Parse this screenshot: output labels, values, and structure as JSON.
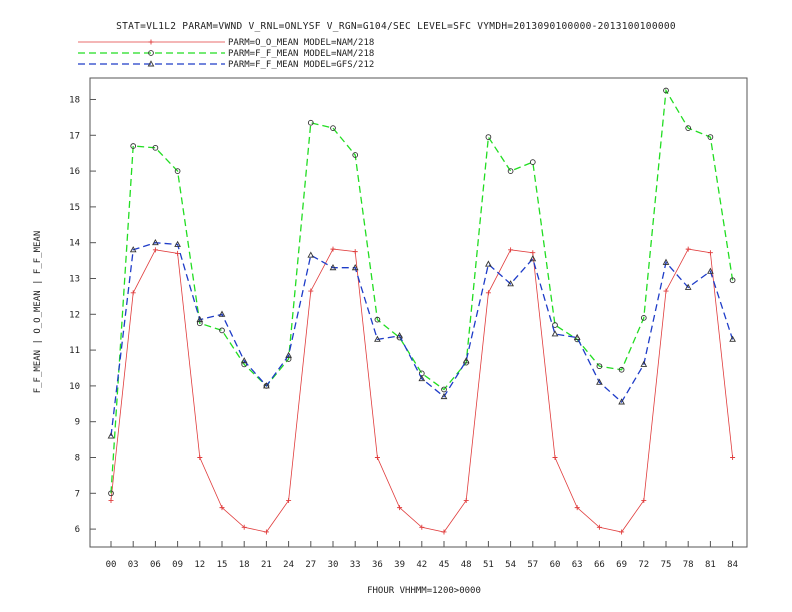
{
  "chart_data": {
    "type": "line",
    "title": "STAT=VL1L2 PARAM=VWND V_RNL=ONLYSF V_RGN=G104/SEC LEVEL=SFC VYMDH=2013090100000-2013100100000",
    "xlabel": "FHOUR VHHMM=1200>0000",
    "ylabel": "F_F_MEAN | O_O_MEAN | F_F_MEAN",
    "categories": [
      "00",
      "03",
      "06",
      "09",
      "12",
      "15",
      "18",
      "21",
      "24",
      "27",
      "30",
      "33",
      "36",
      "39",
      "42",
      "45",
      "48",
      "51",
      "54",
      "57",
      "60",
      "63",
      "66",
      "69",
      "72",
      "75",
      "78",
      "81",
      "84"
    ],
    "ylim": [
      5.5,
      18.6
    ],
    "yticks": [
      6,
      7,
      8,
      9,
      10,
      11,
      12,
      13,
      14,
      15,
      16,
      17,
      18
    ],
    "grid": false,
    "legend_position": "top-left",
    "series": [
      {
        "name": "PARM=O_O_MEAN MODEL=NAM/218",
        "color": "#e03c3c",
        "dash": "solid",
        "marker": "plus",
        "values": [
          6.8,
          12.6,
          13.8,
          13.7,
          8.0,
          6.6,
          6.05,
          5.92,
          6.8,
          12.65,
          13.82,
          13.75,
          8.0,
          6.6,
          6.05,
          5.92,
          6.8,
          12.6,
          13.8,
          13.72,
          8.0,
          6.6,
          6.05,
          5.92,
          6.8,
          12.65,
          13.82,
          13.72,
          8.0
        ]
      },
      {
        "name": "PARM=F_F_MEAN MODEL=NAM/218",
        "color": "#22dd22",
        "dash": "dashed",
        "marker": "circle",
        "values": [
          7.0,
          16.7,
          16.65,
          16.0,
          11.75,
          11.55,
          10.6,
          10.0,
          10.75,
          17.35,
          17.2,
          16.45,
          11.85,
          11.35,
          10.35,
          9.9,
          10.65,
          16.95,
          16.0,
          16.25,
          11.7,
          11.3,
          10.55,
          10.45,
          11.9,
          18.25,
          17.2,
          16.95,
          12.95
        ]
      },
      {
        "name": "PARM=F_F_MEAN MODEL=GFS/212",
        "color": "#1e3cc8",
        "dash": "dashed",
        "marker": "triangle",
        "values": [
          8.6,
          13.8,
          14.0,
          13.95,
          11.85,
          12.0,
          10.7,
          10.0,
          10.85,
          13.65,
          13.3,
          13.3,
          11.3,
          11.4,
          10.2,
          9.7,
          10.7,
          13.4,
          12.85,
          13.55,
          11.45,
          11.35,
          10.1,
          9.55,
          10.6,
          13.45,
          12.75,
          13.2,
          11.3
        ]
      }
    ]
  }
}
